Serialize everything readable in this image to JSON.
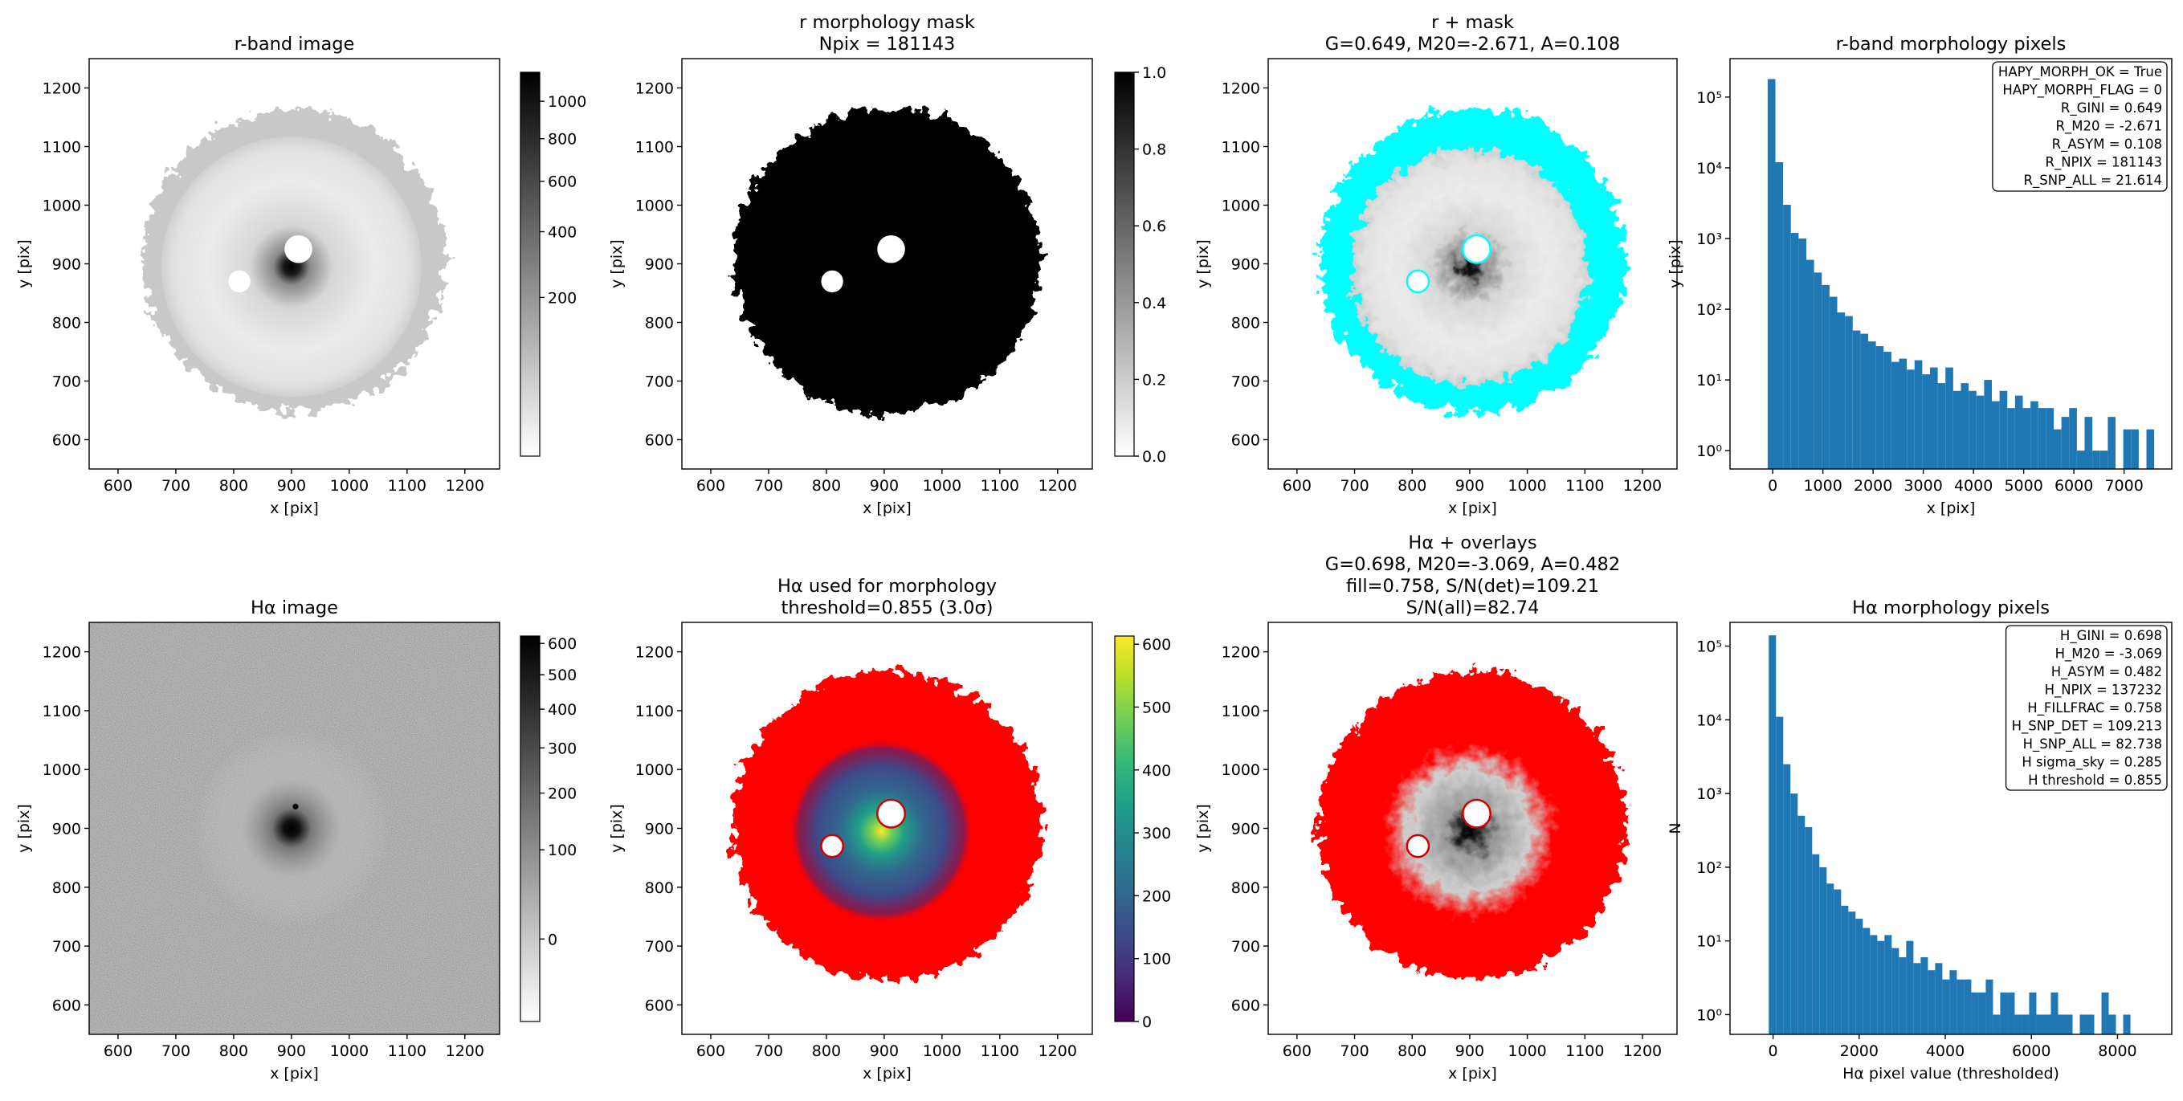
{
  "chart_data": [
    {
      "type": "image",
      "title": [
        "r-band image"
      ],
      "xlabel": "x [pix]",
      "ylabel": "y [pix]",
      "xlim": [
        550,
        1260
      ],
      "ylim": [
        550,
        1250
      ],
      "xticks": [
        600,
        700,
        800,
        900,
        1000,
        1100,
        1200
      ],
      "yticks": [
        600,
        700,
        800,
        900,
        1000,
        1100,
        1200
      ],
      "colorbar": {
        "cmap": "gray_r",
        "stretch": "sqrt",
        "lim": [
          0,
          1170
        ],
        "ticks": [
          200,
          400,
          600,
          800,
          1000
        ]
      }
    },
    {
      "type": "image",
      "title": [
        "r morphology mask",
        "Npix = 181143"
      ],
      "xlabel": "x [pix]",
      "ylabel": "y [pix]",
      "xlim": [
        550,
        1260
      ],
      "ylim": [
        550,
        1250
      ],
      "xticks": [
        600,
        700,
        800,
        900,
        1000,
        1100,
        1200
      ],
      "yticks": [
        600,
        700,
        800,
        900,
        1000,
        1100,
        1200
      ],
      "colorbar": {
        "cmap": "gray_r",
        "stretch": "linear",
        "lim": [
          0,
          1
        ],
        "ticks": [
          {
            "value": 0,
            "label": "0.0"
          },
          0.2,
          0.4,
          0.6,
          0.8,
          {
            "value": 1,
            "label": "1.0"
          }
        ]
      }
    },
    {
      "type": "image",
      "title": [
        "r + mask",
        "G=0.649, M20=-2.671, A=0.108"
      ],
      "xlabel": "x [pix]",
      "ylabel": "y [pix]",
      "xlim": [
        550,
        1260
      ],
      "ylim": [
        550,
        1250
      ],
      "xticks": [
        600,
        700,
        800,
        900,
        1000,
        1100,
        1200
      ],
      "yticks": [
        600,
        700,
        800,
        900,
        1000,
        1100,
        1200
      ]
    },
    {
      "type": "histogram",
      "title": [
        "r-band morphology pixels"
      ],
      "xlabel": "x [pix]",
      "ylabel": "y [pix]",
      "color": "#1f77b4",
      "yscale": "log",
      "xlim": [
        -850,
        7950
      ],
      "ylim": [
        0.55,
        350000
      ],
      "xticks": [
        0,
        1000,
        2000,
        3000,
        4000,
        5000,
        6000,
        7000
      ],
      "yticks": [
        {
          "value": 1,
          "label": "10⁰"
        },
        {
          "value": 10,
          "label": "10¹"
        },
        {
          "value": 100,
          "label": "10²"
        },
        {
          "value": 1000,
          "label": "10³"
        },
        {
          "value": 10000,
          "label": "10⁴"
        },
        {
          "value": 100000,
          "label": "10⁵"
        }
      ],
      "bins": [
        -100,
        54,
        208,
        362,
        516,
        670,
        824,
        978,
        1132,
        1286,
        1440,
        1594,
        1748,
        1902,
        2056,
        2210,
        2364,
        2518,
        2672,
        2826,
        2980,
        3134,
        3288,
        3442,
        3596,
        3750,
        3904,
        4058,
        4212,
        4366,
        4520,
        4674,
        4828,
        4982,
        5136,
        5290,
        5444,
        5598,
        5752,
        5906,
        6060,
        6214,
        6368,
        6522,
        6676,
        6830,
        6984,
        7138,
        7292,
        7446,
        7600
      ],
      "counts": [
        180000,
        12000,
        3000,
        1200,
        1000,
        500,
        330,
        220,
        150,
        90,
        80,
        50,
        45,
        35,
        30,
        25,
        18,
        20,
        14,
        19,
        12,
        15,
        9,
        15,
        7,
        9,
        7,
        6,
        10,
        5,
        7,
        4,
        6,
        4,
        5,
        4,
        4,
        2,
        3,
        4,
        1,
        3,
        1,
        1,
        3,
        0,
        2,
        2,
        0,
        2
      ],
      "annotation": [
        "HAPY_MORPH_OK = True",
        "HAPY_MORPH_FLAG = 0",
        "R_GINI = 0.649",
        "R_M20 = -2.671",
        "R_ASYM = 0.108",
        "R_NPIX = 181143",
        "R_SNP_ALL = 21.614"
      ]
    },
    {
      "type": "image",
      "title": [
        "Hα image"
      ],
      "xlabel": "x [pix]",
      "ylabel": "y [pix]",
      "xlim": [
        550,
        1260
      ],
      "ylim": [
        550,
        1250
      ],
      "xticks": [
        600,
        700,
        800,
        900,
        1000,
        1100,
        1200
      ],
      "yticks": [
        600,
        700,
        800,
        900,
        1000,
        1100,
        1200
      ],
      "colorbar": {
        "cmap": "gray_r",
        "stretch": "sqrt",
        "lim": [
          -30,
          625
        ],
        "ticks": [
          0,
          100,
          200,
          300,
          400,
          500,
          600
        ]
      }
    },
    {
      "type": "image",
      "title": [
        "Hα used for morphology",
        "threshold=0.855 (3.0σ)"
      ],
      "xlabel": "x [pix]",
      "ylabel": "y [pix]",
      "xlim": [
        550,
        1260
      ],
      "ylim": [
        550,
        1250
      ],
      "xticks": [
        600,
        700,
        800,
        900,
        1000,
        1100,
        1200
      ],
      "yticks": [
        600,
        700,
        800,
        900,
        1000,
        1100,
        1200
      ],
      "colorbar": {
        "cmap": "viridis",
        "stretch": "linear",
        "lim": [
          0,
          613
        ],
        "ticks": [
          0,
          100,
          200,
          300,
          400,
          500,
          600
        ]
      }
    },
    {
      "type": "image",
      "title": [
        "Hα + overlays",
        "G=0.698, M20=-3.069, A=0.482",
        "fill=0.758, S/N(det)=109.21",
        "S/N(all)=82.74"
      ],
      "xlabel": "x [pix]",
      "ylabel": "y [pix]",
      "xlim": [
        550,
        1260
      ],
      "ylim": [
        550,
        1250
      ],
      "xticks": [
        600,
        700,
        800,
        900,
        1000,
        1100,
        1200
      ],
      "yticks": [
        600,
        700,
        800,
        900,
        1000,
        1100,
        1200
      ]
    },
    {
      "type": "histogram",
      "title": [
        "Hα morphology pixels"
      ],
      "xlabel": "Hα pixel value (thresholded)",
      "ylabel": "N",
      "color": "#1f77b4",
      "yscale": "log",
      "xlim": [
        -1000,
        9260
      ],
      "ylim": [
        0.54,
        210000
      ],
      "xticks": [
        0,
        2000,
        4000,
        6000,
        8000
      ],
      "yticks": [
        {
          "value": 1,
          "label": "10⁰"
        },
        {
          "value": 10,
          "label": "10¹"
        },
        {
          "value": 100,
          "label": "10²"
        },
        {
          "value": 1000,
          "label": "10³"
        },
        {
          "value": 10000,
          "label": "10⁴"
        },
        {
          "value": 100000,
          "label": "10⁵"
        }
      ],
      "bins": [
        -100,
        68,
        236,
        404,
        572,
        740,
        908,
        1076,
        1244,
        1412,
        1580,
        1748,
        1916,
        2084,
        2252,
        2420,
        2588,
        2756,
        2924,
        3092,
        3260,
        3428,
        3596,
        3764,
        3932,
        4100,
        4268,
        4436,
        4604,
        4772,
        4940,
        5108,
        5276,
        5444,
        5612,
        5780,
        5948,
        6116,
        6284,
        6452,
        6620,
        6788,
        6956,
        7124,
        7292,
        7460,
        7628,
        7796,
        7964,
        8132,
        8300
      ],
      "counts": [
        140000,
        11000,
        2500,
        1000,
        500,
        350,
        150,
        100,
        60,
        50,
        30,
        25,
        20,
        15,
        12,
        10,
        12,
        8,
        6,
        10,
        5,
        6,
        4,
        5,
        3,
        4,
        3,
        3,
        2,
        2,
        3,
        1,
        2,
        2,
        1,
        1,
        2,
        1,
        1,
        2,
        1,
        1,
        0,
        1,
        1,
        0,
        2,
        1,
        0,
        1
      ],
      "annotation": [
        "H_GINI = 0.698",
        "H_M20 = -3.069",
        "H_ASYM = 0.482",
        "H_NPIX = 137232",
        "H_FILLFRAC = 0.758",
        "H_SNP_DET = 109.213",
        "H_SNP_ALL = 82.738",
        "H sigma_sky = 0.285",
        "H threshold = 0.855"
      ]
    }
  ]
}
